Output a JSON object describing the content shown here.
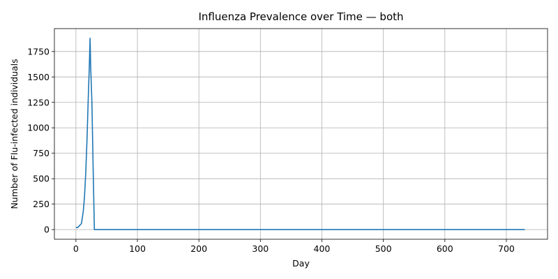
{
  "chart_data": {
    "type": "line",
    "title": "Influenza Prevalence over Time — both",
    "xlabel": "Day",
    "ylabel": "Number of Flu-infected individuals",
    "xlim": [
      -35,
      767
    ],
    "ylim": [
      -95,
      1975
    ],
    "xticks": [
      0,
      100,
      200,
      300,
      400,
      500,
      600,
      700
    ],
    "yticks": [
      0,
      250,
      500,
      750,
      1000,
      1250,
      1500,
      1750
    ],
    "grid": true,
    "legend": "none",
    "series": [
      {
        "color": "#1f77b4",
        "x": [
          0,
          3,
          6,
          9,
          12,
          14,
          16,
          18,
          20,
          22,
          23,
          24,
          26,
          28,
          30,
          40,
          100,
          200,
          300,
          400,
          500,
          600,
          700,
          730
        ],
        "y": [
          20,
          20,
          40,
          60,
          180,
          330,
          560,
          880,
          1280,
          1650,
          1880,
          1600,
          1250,
          600,
          0,
          0,
          0,
          0,
          0,
          0,
          0,
          0,
          0,
          0
        ]
      }
    ]
  }
}
